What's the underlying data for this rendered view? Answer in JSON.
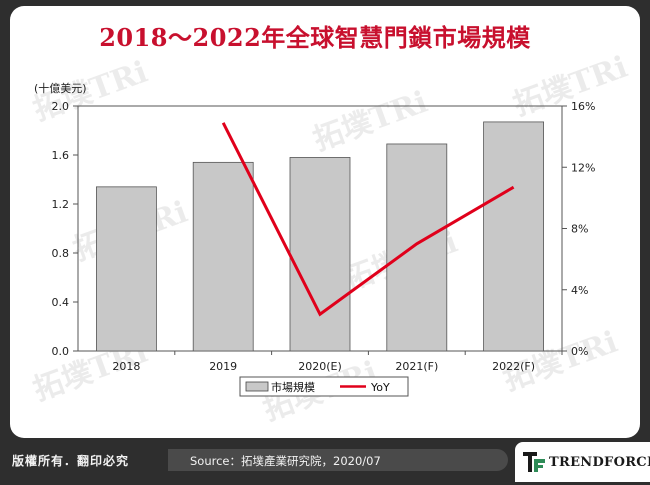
{
  "title": "2018～2022年全球智慧門鎖市場規模",
  "unit_label": "(十億美元)",
  "chart_data": {
    "type": "bar",
    "categories": [
      "2018",
      "2019",
      "2020(E)",
      "2021(F)",
      "2022(F)"
    ],
    "series": [
      {
        "name": "市場規模",
        "type": "bar",
        "axis": "left",
        "values": [
          1.34,
          1.54,
          1.58,
          1.69,
          1.87
        ],
        "color": "#c8c8c8"
      },
      {
        "name": "YoY",
        "type": "line",
        "axis": "right",
        "values": [
          null,
          0.149,
          0.024,
          0.07,
          0.107
        ],
        "color": "#e0001b"
      }
    ],
    "y_left": {
      "min": 0,
      "max": 2.0,
      "ticks": [
        "0.0",
        "0.4",
        "0.8",
        "1.2",
        "1.6",
        "2.0"
      ],
      "tick_values": [
        0,
        0.4,
        0.8,
        1.2,
        1.6,
        2.0
      ]
    },
    "y_right": {
      "min": 0,
      "max": 0.16,
      "ticks": [
        "0%",
        "4%",
        "8%",
        "12%",
        "16%"
      ],
      "tick_values": [
        0,
        0.04,
        0.08,
        0.12,
        0.16
      ]
    },
    "grid": false,
    "legend_position": "bottom"
  },
  "legend": {
    "bar_label": "市場規模",
    "line_label": "YoY"
  },
  "footer": {
    "copyright": "版權所有．翻印必究",
    "source": "Source：拓墣產業研究院，2020/07",
    "brand": "TRENDFORCE"
  },
  "watermark": {
    "text": "拓墣TRi"
  },
  "colors": {
    "title": "#c8102e",
    "bar": "#c8c8c8",
    "line": "#e0001b",
    "frame": "#2e2e2e"
  }
}
